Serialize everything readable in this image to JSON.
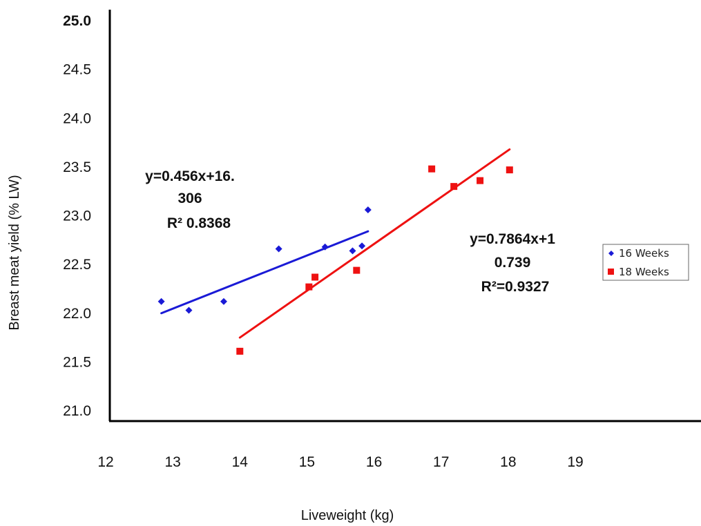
{
  "chart_data": {
    "type": "scatter",
    "xlabel": "Liveweight (kg)",
    "ylabel": "Breast meat yield (% LW)",
    "xlim": [
      12,
      19
    ],
    "ylim": [
      21.0,
      25.0
    ],
    "x_ticks": [
      "12",
      "13",
      "14",
      "15",
      "16",
      "17",
      "18",
      "19"
    ],
    "y_ticks": [
      "21.0",
      "21.5",
      "22.0",
      "22.5",
      "23.0",
      "23.5",
      "24.0",
      "24.5",
      "25.0"
    ],
    "legend_position": "right",
    "series": [
      {
        "name": "16 Weeks",
        "color": "#1a1ad6",
        "marker": "diamond",
        "x": [
          12.83,
          13.24,
          13.76,
          14.58,
          15.27,
          15.68,
          15.82,
          15.91
        ],
        "y": [
          22.12,
          22.03,
          22.12,
          22.66,
          22.68,
          22.64,
          22.69,
          23.06
        ],
        "trendline": {
          "x": [
            12.83,
            15.91
          ],
          "y": [
            22.0,
            22.84
          ]
        }
      },
      {
        "name": "18 Weeks",
        "color": "#ee1111",
        "marker": "square",
        "x": [
          14.0,
          15.03,
          15.12,
          15.74,
          16.86,
          17.19,
          17.58,
          18.02
        ],
        "y": [
          21.61,
          22.27,
          22.37,
          22.44,
          23.48,
          23.3,
          23.36,
          23.47
        ],
        "trendline": {
          "x": [
            14.0,
            18.02
          ],
          "y": [
            21.75,
            23.68
          ]
        }
      }
    ],
    "annotations": [
      {
        "lines": [
          "y=0.456x+16.",
          "306",
          "R² 0.8368"
        ]
      },
      {
        "lines": [
          "y=0.7864x+1",
          "0.739",
          "R²=0.9327"
        ]
      }
    ]
  }
}
